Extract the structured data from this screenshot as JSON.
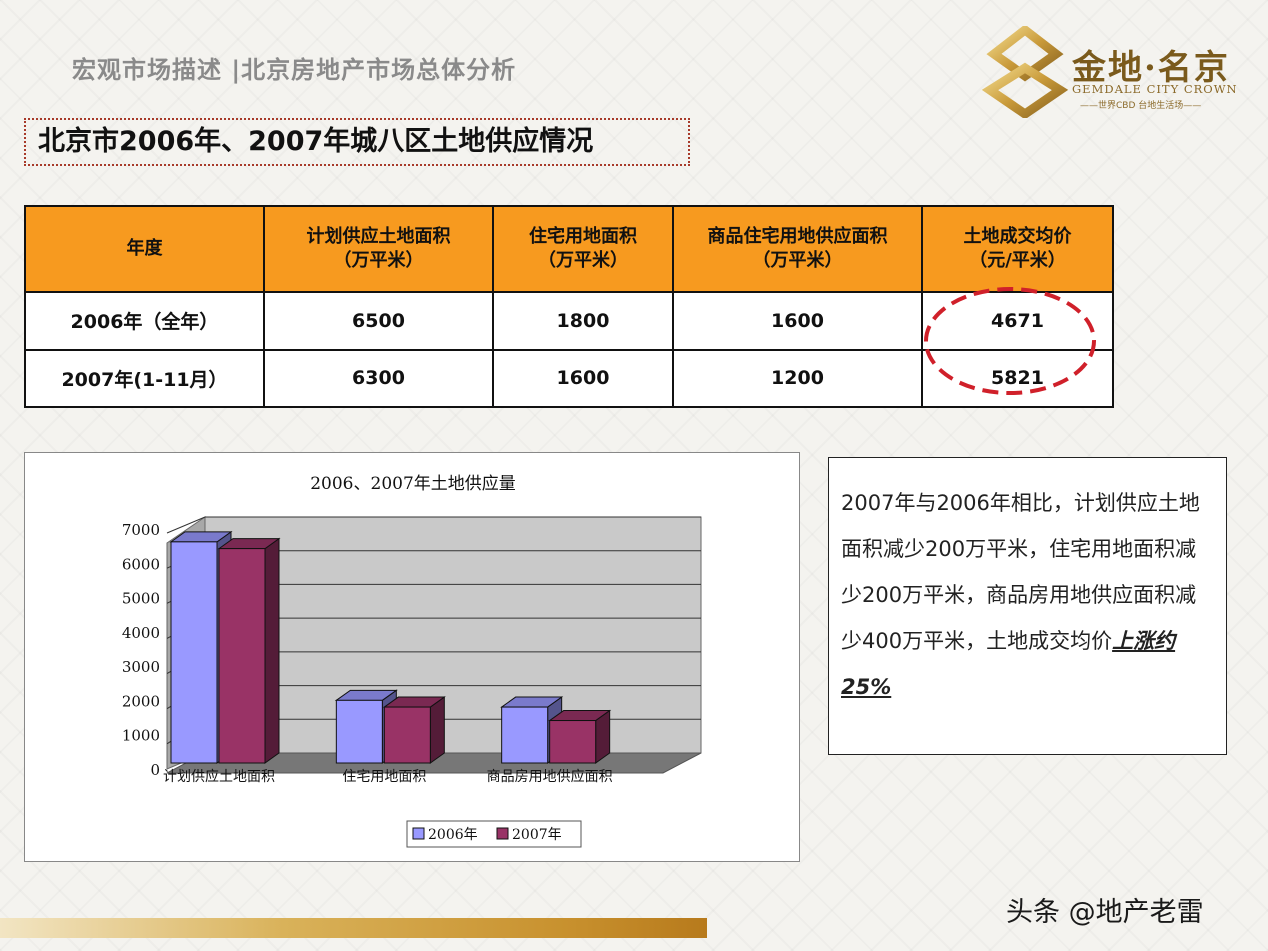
{
  "header": {
    "section_title": "宏观市场描述 |北京房地产市场总体分析",
    "logo_cn": "金地·名京",
    "logo_en": "GEMDALE CITY CROWN",
    "logo_tag": "——世界CBD 台地生活场——"
  },
  "main_title": "北京市2006年、2007年城八区土地供应情况",
  "table": {
    "headers": [
      [
        "年度"
      ],
      [
        "计划供应土地面积",
        "（万平米）"
      ],
      [
        "住宅用地面积",
        "（万平米）"
      ],
      [
        "商品住宅用地供应面积",
        "（万平米）"
      ],
      [
        "土地成交均价",
        "（元/平米）"
      ]
    ],
    "rows": [
      [
        "2006年（全年）",
        "6500",
        "1800",
        "1600",
        "4671"
      ],
      [
        "2007年(1-11月）",
        "6300",
        "1600",
        "1200",
        "5821"
      ]
    ]
  },
  "chart_data": {
    "type": "bar",
    "title": "2006、2007年土地供应量",
    "categories": [
      "计划供应土地面积",
      "住宅用地面积",
      "商品房用地供应面积"
    ],
    "series": [
      {
        "name": "2006年",
        "values": [
          6500,
          1800,
          1600
        ],
        "color": "#9999ff"
      },
      {
        "name": "2007年",
        "values": [
          6300,
          1600,
          1200
        ],
        "color": "#993366"
      }
    ],
    "ylim": [
      0,
      7000
    ],
    "yticks": [
      0,
      1000,
      2000,
      3000,
      4000,
      5000,
      6000,
      7000
    ],
    "grid": true,
    "legend": "bottom"
  },
  "summary": {
    "text": "2007年与2006年相比，计划供应土地面积减少200万平米，住宅用地面积减少200万平米，商品房用地供应面积减少400万平米，土地成交均价",
    "emphasis": "上涨约25%"
  },
  "watermark": "头条 @地产老雷"
}
